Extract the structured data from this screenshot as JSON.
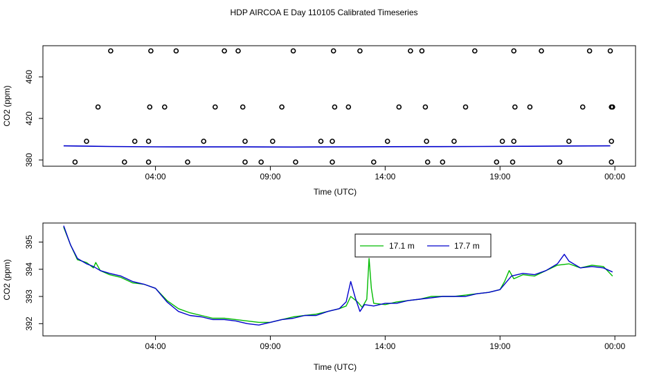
{
  "title": "HDP AIRCOA E  Day 110105  Calibrated Timeseries",
  "chart_data": [
    {
      "type": "scatter",
      "panel": "top",
      "xlabel": "Time (UTC)",
      "ylabel": "CO2 (ppm)",
      "x_ticks": [
        {
          "label": "04:00",
          "hour": 4
        },
        {
          "label": "09:00",
          "hour": 9
        },
        {
          "label": "14:00",
          "hour": 14
        },
        {
          "label": "19:00",
          "hour": 19
        },
        {
          "label": "00:00",
          "hour": 24
        }
      ],
      "y_ticks": [
        {
          "label": "380",
          "value": 380
        },
        {
          "label": "420",
          "value": 420
        },
        {
          "label": "460",
          "value": 460
        }
      ],
      "xlim": [
        -0.9,
        24.9
      ],
      "ylim": [
        374,
        490
      ],
      "line": {
        "color": "#0000cc",
        "points": [
          [
            0,
            393.6
          ],
          [
            2,
            393.0
          ],
          [
            4,
            392.7
          ],
          [
            6,
            392.6
          ],
          [
            8,
            392.6
          ],
          [
            10,
            392.5
          ],
          [
            12,
            392.6
          ],
          [
            14,
            392.8
          ],
          [
            16,
            392.9
          ],
          [
            18,
            393.0
          ],
          [
            20,
            393.2
          ],
          [
            22,
            393.5
          ],
          [
            23.8,
            393.6
          ]
        ]
      },
      "flag_points": {
        "marker": "open-circle",
        "row_values": [
          378,
          398,
          431,
          485
        ],
        "x_by_row": [
          [
            0.5,
            2.65,
            3.7,
            5.4,
            7.9,
            8.6,
            10.1,
            11.7,
            13.5,
            15.85,
            16.5,
            18.85,
            19.55,
            21.6,
            23.85
          ],
          [
            1.0,
            3.1,
            3.7,
            6.1,
            7.9,
            9.1,
            11.2,
            11.7,
            14.1,
            15.8,
            17.0,
            19.1,
            19.6,
            22.0,
            23.85
          ],
          [
            1.5,
            3.75,
            4.4,
            6.6,
            7.8,
            9.5,
            11.8,
            12.4,
            14.6,
            15.75,
            17.5,
            19.65,
            20.3,
            22.6,
            23.85,
            23.9
          ],
          [
            2.05,
            3.8,
            4.9,
            7.0,
            7.6,
            10.0,
            11.75,
            12.9,
            15.1,
            15.6,
            17.9,
            19.6,
            20.8,
            22.9,
            23.8
          ]
        ]
      }
    },
    {
      "type": "line",
      "panel": "bottom",
      "xlabel": "Time (UTC)",
      "ylabel": "CO2 (ppm)",
      "x_ticks": [
        {
          "label": "04:00",
          "hour": 4
        },
        {
          "label": "09:00",
          "hour": 9
        },
        {
          "label": "14:00",
          "hour": 14
        },
        {
          "label": "19:00",
          "hour": 19
        },
        {
          "label": "00:00",
          "hour": 24
        }
      ],
      "y_ticks": [
        {
          "label": "392",
          "value": 392
        },
        {
          "label": "393",
          "value": 393
        },
        {
          "label": "394",
          "value": 394
        },
        {
          "label": "395",
          "value": 395
        }
      ],
      "xlim": [
        -0.9,
        24.9
      ],
      "ylim": [
        391.55,
        395.7
      ],
      "legend_position": "top-center",
      "series": [
        {
          "name": "17.1 m",
          "color": "#00bb00",
          "points": [
            [
              0,
              395.55
            ],
            [
              0.3,
              394.9
            ],
            [
              0.6,
              394.35
            ],
            [
              1.0,
              394.25
            ],
            [
              1.3,
              394.05
            ],
            [
              1.4,
              394.25
            ],
            [
              1.6,
              393.95
            ],
            [
              2.0,
              393.8
            ],
            [
              2.5,
              393.7
            ],
            [
              3.0,
              393.5
            ],
            [
              3.5,
              393.45
            ],
            [
              4.0,
              393.3
            ],
            [
              4.5,
              392.85
            ],
            [
              5.0,
              392.55
            ],
            [
              5.5,
              392.4
            ],
            [
              6.0,
              392.3
            ],
            [
              6.5,
              392.2
            ],
            [
              7.0,
              392.2
            ],
            [
              7.5,
              392.15
            ],
            [
              8.0,
              392.1
            ],
            [
              8.5,
              392.05
            ],
            [
              9.0,
              392.05
            ],
            [
              9.5,
              392.15
            ],
            [
              10.0,
              392.25
            ],
            [
              10.5,
              392.3
            ],
            [
              11.0,
              392.35
            ],
            [
              11.5,
              392.45
            ],
            [
              12.0,
              392.55
            ],
            [
              12.3,
              392.65
            ],
            [
              12.5,
              393.0
            ],
            [
              12.8,
              392.8
            ],
            [
              13.0,
              392.6
            ],
            [
              13.2,
              392.9
            ],
            [
              13.3,
              394.4
            ],
            [
              13.4,
              393.3
            ],
            [
              13.5,
              392.75
            ],
            [
              14.0,
              392.7
            ],
            [
              14.5,
              392.8
            ],
            [
              15.0,
              392.85
            ],
            [
              15.5,
              392.9
            ],
            [
              16.0,
              393.0
            ],
            [
              16.5,
              393.0
            ],
            [
              17.0,
              393.0
            ],
            [
              17.5,
              393.05
            ],
            [
              18.0,
              393.1
            ],
            [
              18.5,
              393.15
            ],
            [
              19.0,
              393.25
            ],
            [
              19.2,
              393.55
            ],
            [
              19.4,
              393.95
            ],
            [
              19.6,
              393.65
            ],
            [
              20.0,
              393.8
            ],
            [
              20.5,
              393.75
            ],
            [
              21.0,
              393.95
            ],
            [
              21.5,
              394.15
            ],
            [
              22.0,
              394.2
            ],
            [
              22.5,
              394.05
            ],
            [
              23.0,
              394.15
            ],
            [
              23.5,
              394.1
            ],
            [
              23.9,
              393.75
            ]
          ]
        },
        {
          "name": "17.7 m",
          "color": "#0000cc",
          "points": [
            [
              0,
              395.6
            ],
            [
              0.3,
              394.9
            ],
            [
              0.6,
              394.4
            ],
            [
              1.0,
              394.2
            ],
            [
              1.3,
              394.1
            ],
            [
              1.6,
              393.95
            ],
            [
              2.0,
              393.85
            ],
            [
              2.5,
              393.75
            ],
            [
              3.0,
              393.55
            ],
            [
              3.5,
              393.45
            ],
            [
              4.0,
              393.3
            ],
            [
              4.5,
              392.8
            ],
            [
              5.0,
              392.45
            ],
            [
              5.5,
              392.3
            ],
            [
              6.0,
              392.25
            ],
            [
              6.5,
              392.15
            ],
            [
              7.0,
              392.15
            ],
            [
              7.5,
              392.1
            ],
            [
              8.0,
              392.0
            ],
            [
              8.5,
              391.95
            ],
            [
              9.0,
              392.05
            ],
            [
              9.5,
              392.15
            ],
            [
              10.0,
              392.2
            ],
            [
              10.5,
              392.3
            ],
            [
              11.0,
              392.3
            ],
            [
              11.5,
              392.45
            ],
            [
              12.0,
              392.55
            ],
            [
              12.3,
              392.8
            ],
            [
              12.5,
              393.55
            ],
            [
              12.7,
              392.95
            ],
            [
              12.9,
              392.45
            ],
            [
              13.1,
              392.7
            ],
            [
              13.5,
              392.65
            ],
            [
              14.0,
              392.75
            ],
            [
              14.5,
              392.75
            ],
            [
              15.0,
              392.85
            ],
            [
              15.5,
              392.9
            ],
            [
              16.0,
              392.95
            ],
            [
              16.5,
              393.0
            ],
            [
              17.0,
              393.0
            ],
            [
              17.5,
              393.0
            ],
            [
              18.0,
              393.1
            ],
            [
              18.5,
              393.15
            ],
            [
              19.0,
              393.25
            ],
            [
              19.5,
              393.75
            ],
            [
              20.0,
              393.85
            ],
            [
              20.5,
              393.8
            ],
            [
              21.0,
              393.95
            ],
            [
              21.5,
              394.2
            ],
            [
              21.8,
              394.55
            ],
            [
              22.0,
              394.3
            ],
            [
              22.5,
              394.05
            ],
            [
              23.0,
              394.1
            ],
            [
              23.5,
              394.05
            ],
            [
              23.9,
              393.9
            ]
          ]
        }
      ]
    }
  ]
}
